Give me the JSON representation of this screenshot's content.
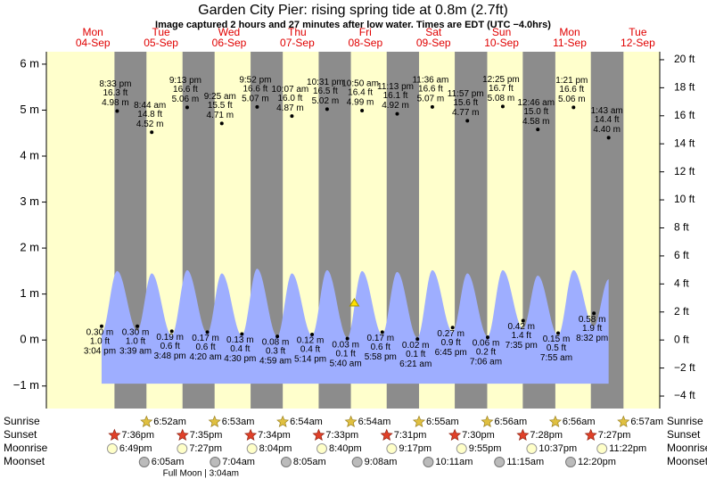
{
  "chart_data": {
    "type": "tide",
    "title": "Garden City Pier: rising  spring tide at 0.8m (2.7ft)",
    "subtitle": "Image captured 2 hours and 27 minutes after low water. Times are EDT (UTC −4.0hrs)",
    "ylim": [
      -1.49,
      6.27
    ],
    "yticks": [
      {
        "value": -1,
        "label": "−1 m"
      },
      {
        "value": 0,
        "label": "0 m"
      },
      {
        "value": 1,
        "label": "1 m"
      },
      {
        "value": 2,
        "label": "2 m"
      },
      {
        "value": 3,
        "label": "3 m"
      },
      {
        "value": 4,
        "label": "4 m"
      },
      {
        "value": 5,
        "label": "5 m"
      },
      {
        "value": 6,
        "label": "6 m"
      }
    ],
    "y2lim": [
      -4.89,
      20.57
    ],
    "y2ticks": [
      {
        "value": -4,
        "label": "−4 ft"
      },
      {
        "value": -2,
        "label": "−2 ft"
      },
      {
        "value": 0,
        "label": "0 ft"
      },
      {
        "value": 2,
        "label": "2 ft"
      },
      {
        "value": 4,
        "label": "4 ft"
      },
      {
        "value": 6,
        "label": "6 ft"
      },
      {
        "value": 8,
        "label": "8 ft"
      },
      {
        "value": 10,
        "label": "10 ft"
      },
      {
        "value": 12,
        "label": "12 ft"
      },
      {
        "value": 14,
        "label": "14 ft"
      },
      {
        "value": 16,
        "label": "16 ft"
      },
      {
        "value": 18,
        "label": "18 ft"
      },
      {
        "value": 20,
        "label": "20 ft"
      }
    ],
    "curve_base": -0.95,
    "row_labels": [
      "Sunrise",
      "Sunset",
      "Moonrise",
      "Moonset"
    ],
    "days": [
      {
        "name": "Mon",
        "date": "04-Sep",
        "sunset": "7:36pm",
        "moonrise": "6:49pm",
        "tides": [
          {
            "time": "3:04 pm",
            "value": 0.3,
            "m": "0.30 m",
            "ft": "1.0 ft",
            "curve": 0.15
          },
          {
            "time": "8:33 pm",
            "value": 4.98,
            "m": "4.98 m",
            "ft": "16.3 ft",
            "curve": 1.5
          }
        ]
      },
      {
        "name": "Tue",
        "date": "05-Sep",
        "sunrise": "6:52am",
        "sunset": "7:35pm",
        "moonrise": "7:27pm",
        "moonset": "6:05am",
        "moon_phase": "Full Moon | 3:04am",
        "tides": [
          {
            "time": "3:39 am",
            "value": 0.3,
            "m": "0.30 m",
            "ft": "1.0 ft",
            "curve": 0.2
          },
          {
            "time": "8:44 am",
            "value": 4.52,
            "m": "4.52 m",
            "ft": "14.8 ft",
            "curve": 1.45
          },
          {
            "time": "3:48 pm",
            "value": 0.19,
            "m": "0.19 m",
            "ft": "0.6 ft",
            "curve": 0.1
          },
          {
            "time": "9:13 pm",
            "value": 5.06,
            "m": "5.06 m",
            "ft": "16.6 ft",
            "curve": 1.52
          }
        ]
      },
      {
        "name": "Wed",
        "date": "06-Sep",
        "sunrise": "6:53am",
        "sunset": "7:34pm",
        "moonrise": "8:04pm",
        "moonset": "7:04am",
        "tides": [
          {
            "time": "4:20 am",
            "value": 0.17,
            "m": "0.17 m",
            "ft": "0.6 ft",
            "curve": 0.15
          },
          {
            "time": "9:25 am",
            "value": 4.71,
            "m": "4.71 m",
            "ft": "15.5 ft",
            "curve": 1.45
          },
          {
            "time": "4:30 pm",
            "value": 0.13,
            "m": "0.13 m",
            "ft": "0.4 ft",
            "curve": 0.1
          },
          {
            "time": "9:52 pm",
            "value": 5.07,
            "m": "5.07 m",
            "ft": "16.6 ft",
            "curve": 1.55
          }
        ]
      },
      {
        "name": "Thu",
        "date": "07-Sep",
        "sunrise": "6:54am",
        "sunset": "7:33pm",
        "moonrise": "8:40pm",
        "moonset": "8:05am",
        "tides": [
          {
            "time": "4:59 am",
            "value": 0.08,
            "m": "0.08 m",
            "ft": "0.3 ft",
            "curve": 0.08
          },
          {
            "time": "10:07 am",
            "value": 4.87,
            "m": "4.87 m",
            "ft": "16.0 ft",
            "curve": 1.45
          },
          {
            "time": "5:14 pm",
            "value": 0.12,
            "m": "0.12 m",
            "ft": "0.4 ft",
            "curve": 0.1
          },
          {
            "time": "10:31 pm",
            "value": 5.02,
            "m": "5.02 m",
            "ft": "16.5 ft",
            "curve": 1.52
          }
        ]
      },
      {
        "name": "Fri",
        "date": "08-Sep",
        "sunrise": "6:54am",
        "sunset": "7:31pm",
        "moonrise": "9:17pm",
        "moonset": "9:08am",
        "now": {
          "time": "8:07am",
          "value": 0.8
        },
        "tides": [
          {
            "time": "5:40 am",
            "value": 0.03,
            "m": "0.03 m",
            "ft": "0.1 ft",
            "curve": 0.05
          },
          {
            "time": "10:50 am",
            "value": 4.99,
            "m": "4.99 m",
            "ft": "16.4 ft",
            "curve": 1.5
          },
          {
            "time": "5:58 pm",
            "value": 0.17,
            "m": "0.17 m",
            "ft": "0.6 ft",
            "curve": 0.12
          },
          {
            "time": "11:13 pm",
            "value": 4.92,
            "m": "4.92 m",
            "ft": "16.1 ft",
            "curve": 1.48
          }
        ]
      },
      {
        "name": "Sat",
        "date": "09-Sep",
        "sunrise": "6:55am",
        "sunset": "7:30pm",
        "moonrise": "9:55pm",
        "moonset": "10:11am",
        "tides": [
          {
            "time": "6:21 am",
            "value": 0.02,
            "m": "0.02 m",
            "ft": "0.1 ft",
            "curve": 0.05
          },
          {
            "time": "11:36 am",
            "value": 5.07,
            "m": "5.07 m",
            "ft": "16.6 ft",
            "curve": 1.52
          },
          {
            "time": "6:45 pm",
            "value": 0.27,
            "m": "0.27 m",
            "ft": "0.9 ft",
            "curve": 0.18
          },
          {
            "time": "11:57 pm",
            "value": 4.77,
            "m": "4.77 m",
            "ft": "15.6 ft",
            "curve": 1.45
          }
        ]
      },
      {
        "name": "Sun",
        "date": "10-Sep",
        "sunrise": "6:56am",
        "sunset": "7:28pm",
        "moonrise": "10:37pm",
        "moonset": "11:15am",
        "tides": [
          {
            "time": "7:06 am",
            "value": 0.06,
            "m": "0.06 m",
            "ft": "0.2 ft",
            "curve": 0.08
          },
          {
            "time": "12:25 pm",
            "value": 5.08,
            "m": "5.08 m",
            "ft": "16.7 ft",
            "curve": 1.52
          },
          {
            "time": "7:35 pm",
            "value": 0.42,
            "m": "0.42 m",
            "ft": "1.4 ft",
            "curve": 0.25
          }
        ]
      },
      {
        "name": "Mon",
        "date": "11-Sep",
        "sunrise": "6:56am",
        "sunset": "7:27pm",
        "moonrise": "11:22pm",
        "moonset": "12:20pm",
        "tides": [
          {
            "time": "12:46 am",
            "value": 4.58,
            "m": "4.58 m",
            "ft": "15.0 ft",
            "curve": 1.4
          },
          {
            "time": "7:55 am",
            "value": 0.15,
            "m": "0.15 m",
            "ft": "0.5 ft",
            "curve": 0.1
          },
          {
            "time": "1:21 pm",
            "value": 5.06,
            "m": "5.06 m",
            "ft": "16.6 ft",
            "curve": 1.52
          },
          {
            "time": "8:32 pm",
            "value": 0.58,
            "m": "0.58 m",
            "ft": "1.9 ft",
            "curve": 0.3
          }
        ]
      },
      {
        "name": "Tue",
        "date": "12-Sep",
        "sunrise": "6:57am",
        "tides": [
          {
            "time": "1:43 am",
            "value": 4.4,
            "m": "4.40 m",
            "ft": "14.4 ft",
            "curve": 1.32
          }
        ]
      }
    ]
  }
}
